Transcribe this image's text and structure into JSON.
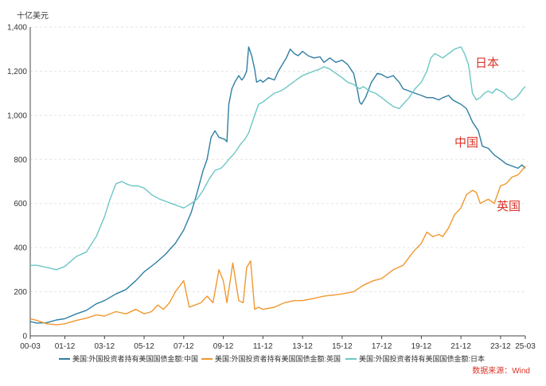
{
  "chart_data": {
    "type": "line",
    "unit_label": "十亿美元",
    "ylim": [
      0,
      1400
    ],
    "y_ticks": [
      0,
      200,
      400,
      600,
      800,
      1000,
      1200,
      1400
    ],
    "y_tick_labels": [
      "0",
      "200",
      "400",
      "600",
      "800",
      "1,000",
      "1,200",
      "1,400"
    ],
    "x_ticks": [
      2000.17,
      2001.92,
      2003.92,
      2005.92,
      2007.92,
      2009.92,
      2011.92,
      2013.92,
      2015.92,
      2017.92,
      2019.92,
      2021.92,
      2023.92,
      2025.17
    ],
    "x_tick_labels": [
      "00-03",
      "01-12",
      "03-12",
      "05-12",
      "07-12",
      "09-12",
      "11-12",
      "13-12",
      "15-12",
      "17-12",
      "19-12",
      "21-12",
      "23-12",
      "25-03"
    ],
    "grid": true,
    "series": [
      {
        "name": "美国:外国投资者持有美国国债金额:中国",
        "color": "#2e7fa3",
        "data": [
          [
            2000.17,
            65
          ],
          [
            2000.5,
            58
          ],
          [
            2001.0,
            60
          ],
          [
            2001.5,
            72
          ],
          [
            2001.92,
            78
          ],
          [
            2002.5,
            100
          ],
          [
            2003.0,
            115
          ],
          [
            2003.5,
            145
          ],
          [
            2003.92,
            160
          ],
          [
            2004.5,
            190
          ],
          [
            2005.0,
            210
          ],
          [
            2005.5,
            250
          ],
          [
            2005.92,
            290
          ],
          [
            2006.5,
            330
          ],
          [
            2007.0,
            370
          ],
          [
            2007.5,
            420
          ],
          [
            2007.92,
            480
          ],
          [
            2008.3,
            560
          ],
          [
            2008.6,
            650
          ],
          [
            2008.9,
            750
          ],
          [
            2009.1,
            800
          ],
          [
            2009.3,
            900
          ],
          [
            2009.5,
            930
          ],
          [
            2009.7,
            900
          ],
          [
            2009.9,
            894
          ],
          [
            2010.0,
            890
          ],
          [
            2010.1,
            880
          ],
          [
            2010.2,
            1050
          ],
          [
            2010.35,
            1120
          ],
          [
            2010.5,
            1150
          ],
          [
            2010.7,
            1180
          ],
          [
            2010.85,
            1160
          ],
          [
            2010.95,
            1170
          ],
          [
            2011.1,
            1200
          ],
          [
            2011.2,
            1310
          ],
          [
            2011.35,
            1270
          ],
          [
            2011.5,
            1210
          ],
          [
            2011.6,
            1150
          ],
          [
            2011.8,
            1160
          ],
          [
            2011.92,
            1150
          ],
          [
            2012.2,
            1170
          ],
          [
            2012.5,
            1160
          ],
          [
            2012.7,
            1200
          ],
          [
            2012.9,
            1230
          ],
          [
            2013.1,
            1260
          ],
          [
            2013.3,
            1300
          ],
          [
            2013.5,
            1280
          ],
          [
            2013.7,
            1270
          ],
          [
            2013.92,
            1290
          ],
          [
            2014.2,
            1270
          ],
          [
            2014.5,
            1260
          ],
          [
            2014.8,
            1265
          ],
          [
            2015.0,
            1240
          ],
          [
            2015.3,
            1260
          ],
          [
            2015.6,
            1240
          ],
          [
            2015.92,
            1250
          ],
          [
            2016.2,
            1230
          ],
          [
            2016.5,
            1190
          ],
          [
            2016.7,
            1110
          ],
          [
            2016.8,
            1060
          ],
          [
            2016.9,
            1050
          ],
          [
            2017.1,
            1080
          ],
          [
            2017.4,
            1150
          ],
          [
            2017.7,
            1190
          ],
          [
            2017.92,
            1185
          ],
          [
            2018.2,
            1170
          ],
          [
            2018.5,
            1180
          ],
          [
            2018.8,
            1150
          ],
          [
            2019.0,
            1120
          ],
          [
            2019.3,
            1110
          ],
          [
            2019.6,
            1100
          ],
          [
            2019.92,
            1090
          ],
          [
            2020.2,
            1080
          ],
          [
            2020.5,
            1080
          ],
          [
            2020.8,
            1070
          ],
          [
            2021.0,
            1080
          ],
          [
            2021.3,
            1090
          ],
          [
            2021.5,
            1070
          ],
          [
            2021.7,
            1060
          ],
          [
            2021.92,
            1050
          ],
          [
            2022.2,
            1030
          ],
          [
            2022.5,
            970
          ],
          [
            2022.8,
            930
          ],
          [
            2023.0,
            860
          ],
          [
            2023.3,
            850
          ],
          [
            2023.6,
            820
          ],
          [
            2023.92,
            800
          ],
          [
            2024.2,
            780
          ],
          [
            2024.5,
            770
          ],
          [
            2024.8,
            760
          ],
          [
            2025.0,
            775
          ],
          [
            2025.17,
            760
          ]
        ]
      },
      {
        "name": "美国:外国投资者持有美国国债金额:英国",
        "color": "#f0982f",
        "data": [
          [
            2000.17,
            78
          ],
          [
            2000.5,
            70
          ],
          [
            2001.0,
            55
          ],
          [
            2001.5,
            50
          ],
          [
            2001.92,
            55
          ],
          [
            2002.5,
            70
          ],
          [
            2003.0,
            80
          ],
          [
            2003.5,
            95
          ],
          [
            2003.92,
            90
          ],
          [
            2004.5,
            110
          ],
          [
            2005.0,
            100
          ],
          [
            2005.5,
            120
          ],
          [
            2005.92,
            100
          ],
          [
            2006.3,
            110
          ],
          [
            2006.6,
            140
          ],
          [
            2006.9,
            120
          ],
          [
            2007.2,
            150
          ],
          [
            2007.5,
            200
          ],
          [
            2007.92,
            250
          ],
          [
            2008.2,
            130
          ],
          [
            2008.5,
            140
          ],
          [
            2008.8,
            150
          ],
          [
            2009.1,
            180
          ],
          [
            2009.4,
            150
          ],
          [
            2009.7,
            300
          ],
          [
            2009.92,
            250
          ],
          [
            2010.1,
            150
          ],
          [
            2010.4,
            330
          ],
          [
            2010.7,
            160
          ],
          [
            2010.92,
            150
          ],
          [
            2011.1,
            310
          ],
          [
            2011.3,
            340
          ],
          [
            2011.5,
            120
          ],
          [
            2011.7,
            130
          ],
          [
            2011.92,
            120
          ],
          [
            2012.5,
            130
          ],
          [
            2013.0,
            150
          ],
          [
            2013.5,
            160
          ],
          [
            2013.92,
            160
          ],
          [
            2014.5,
            170
          ],
          [
            2015.0,
            180
          ],
          [
            2015.5,
            185
          ],
          [
            2015.92,
            190
          ],
          [
            2016.5,
            200
          ],
          [
            2017.0,
            230
          ],
          [
            2017.5,
            250
          ],
          [
            2017.92,
            260
          ],
          [
            2018.5,
            300
          ],
          [
            2019.0,
            320
          ],
          [
            2019.5,
            380
          ],
          [
            2019.92,
            420
          ],
          [
            2020.2,
            470
          ],
          [
            2020.5,
            450
          ],
          [
            2020.8,
            460
          ],
          [
            2021.0,
            450
          ],
          [
            2021.3,
            490
          ],
          [
            2021.6,
            550
          ],
          [
            2021.92,
            580
          ],
          [
            2022.2,
            640
          ],
          [
            2022.5,
            660
          ],
          [
            2022.7,
            650
          ],
          [
            2022.9,
            600
          ],
          [
            2023.1,
            610
          ],
          [
            2023.3,
            620
          ],
          [
            2023.6,
            600
          ],
          [
            2023.92,
            680
          ],
          [
            2024.2,
            690
          ],
          [
            2024.5,
            720
          ],
          [
            2024.8,
            730
          ],
          [
            2025.0,
            750
          ],
          [
            2025.17,
            770
          ]
        ]
      },
      {
        "name": "美国:外国投资者持有美国国债金额:日本",
        "color": "#6ec6c6",
        "data": [
          [
            2000.17,
            320
          ],
          [
            2000.5,
            320
          ],
          [
            2001.0,
            310
          ],
          [
            2001.5,
            300
          ],
          [
            2001.92,
            315
          ],
          [
            2002.5,
            360
          ],
          [
            2003.0,
            380
          ],
          [
            2003.5,
            450
          ],
          [
            2003.92,
            540
          ],
          [
            2004.2,
            620
          ],
          [
            2004.5,
            690
          ],
          [
            2004.8,
            700
          ],
          [
            2005.0,
            690
          ],
          [
            2005.3,
            680
          ],
          [
            2005.6,
            680
          ],
          [
            2005.92,
            670
          ],
          [
            2006.3,
            640
          ],
          [
            2006.7,
            620
          ],
          [
            2007.0,
            610
          ],
          [
            2007.3,
            600
          ],
          [
            2007.6,
            590
          ],
          [
            2007.92,
            580
          ],
          [
            2008.3,
            600
          ],
          [
            2008.6,
            620
          ],
          [
            2008.9,
            660
          ],
          [
            2009.2,
            710
          ],
          [
            2009.5,
            750
          ],
          [
            2009.8,
            760
          ],
          [
            2009.92,
            770
          ],
          [
            2010.2,
            800
          ],
          [
            2010.5,
            830
          ],
          [
            2010.8,
            870
          ],
          [
            2011.0,
            890
          ],
          [
            2011.2,
            920
          ],
          [
            2011.5,
            1000
          ],
          [
            2011.7,
            1050
          ],
          [
            2011.92,
            1060
          ],
          [
            2012.2,
            1080
          ],
          [
            2012.5,
            1100
          ],
          [
            2012.8,
            1110
          ],
          [
            2013.0,
            1120
          ],
          [
            2013.3,
            1140
          ],
          [
            2013.6,
            1160
          ],
          [
            2013.92,
            1180
          ],
          [
            2014.2,
            1190
          ],
          [
            2014.5,
            1200
          ],
          [
            2014.8,
            1210
          ],
          [
            2015.0,
            1220
          ],
          [
            2015.3,
            1210
          ],
          [
            2015.6,
            1190
          ],
          [
            2015.92,
            1170
          ],
          [
            2016.2,
            1150
          ],
          [
            2016.5,
            1140
          ],
          [
            2016.8,
            1120
          ],
          [
            2017.0,
            1130
          ],
          [
            2017.3,
            1110
          ],
          [
            2017.6,
            1100
          ],
          [
            2017.92,
            1080
          ],
          [
            2018.2,
            1060
          ],
          [
            2018.5,
            1040
          ],
          [
            2018.8,
            1030
          ],
          [
            2019.0,
            1050
          ],
          [
            2019.3,
            1080
          ],
          [
            2019.6,
            1120
          ],
          [
            2019.92,
            1150
          ],
          [
            2020.2,
            1200
          ],
          [
            2020.4,
            1260
          ],
          [
            2020.6,
            1280
          ],
          [
            2020.8,
            1270
          ],
          [
            2021.0,
            1260
          ],
          [
            2021.3,
            1280
          ],
          [
            2021.6,
            1300
          ],
          [
            2021.92,
            1310
          ],
          [
            2022.1,
            1280
          ],
          [
            2022.3,
            1230
          ],
          [
            2022.5,
            1100
          ],
          [
            2022.7,
            1070
          ],
          [
            2022.9,
            1080
          ],
          [
            2023.1,
            1100
          ],
          [
            2023.3,
            1110
          ],
          [
            2023.5,
            1100
          ],
          [
            2023.7,
            1120
          ],
          [
            2023.92,
            1110
          ],
          [
            2024.1,
            1100
          ],
          [
            2024.3,
            1080
          ],
          [
            2024.5,
            1070
          ],
          [
            2024.7,
            1080
          ],
          [
            2024.9,
            1100
          ],
          [
            2025.05,
            1120
          ],
          [
            2025.17,
            1130
          ]
        ]
      }
    ],
    "annotations": [
      {
        "text": "日本",
        "color": "#d9352a"
      },
      {
        "text": "中国",
        "color": "#d9352a"
      },
      {
        "text": "英国",
        "color": "#d9352a"
      }
    ],
    "source": "数据来源：Wind",
    "source_color": "#d9352a"
  }
}
